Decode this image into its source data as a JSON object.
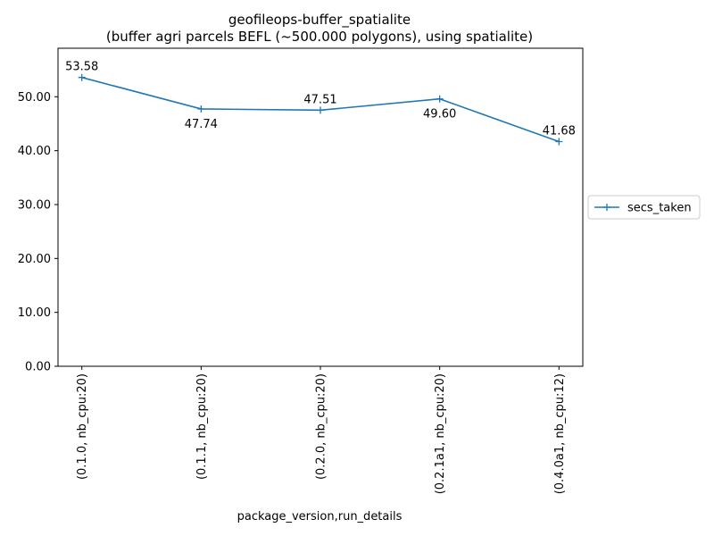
{
  "chart_data": {
    "type": "line",
    "title": "geofileops-buffer_spatialite",
    "subtitle": "(buffer agri parcels BEFL (~500.000 polygons), using spatialite)",
    "xlabel": "package_version,run_details",
    "ylabel": "",
    "categories": [
      "(0.1.0, nb_cpu:20)",
      "(0.1.1, nb_cpu:20)",
      "(0.2.0, nb_cpu:20)",
      "(0.2.1a1, nb_cpu:20)",
      "(0.4.0a1, nb_cpu:12)"
    ],
    "series": [
      {
        "name": "secs_taken",
        "values": [
          53.58,
          47.74,
          47.51,
          49.6,
          41.68
        ],
        "color": "#1f77b4"
      }
    ],
    "data_labels": [
      "53.58",
      "47.74",
      "47.51",
      "49.60",
      "41.68"
    ],
    "ylim": [
      0,
      59
    ],
    "yticks": [
      0,
      10,
      20,
      30,
      40,
      50
    ],
    "ytick_labels": [
      "0.00",
      "10.00",
      "20.00",
      "30.00",
      "40.00",
      "50.00"
    ],
    "grid": false,
    "legend_position": "right"
  }
}
